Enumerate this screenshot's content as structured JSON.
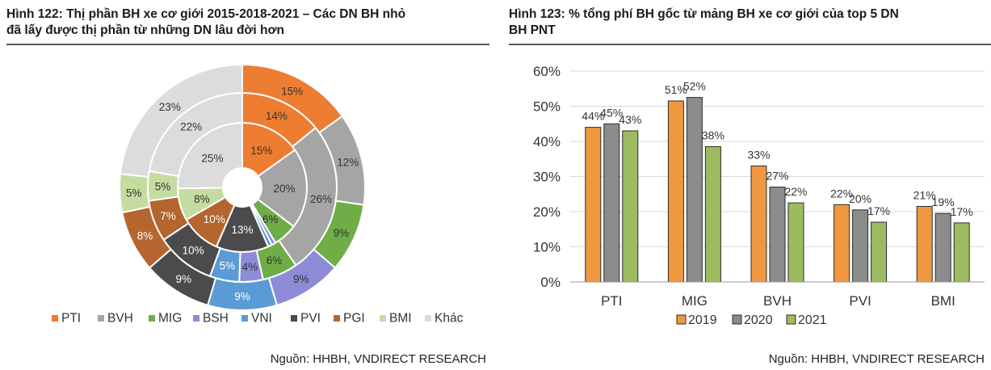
{
  "left": {
    "title_line1": "Hình 122: Thị phần BH xe cơ giới 2015-2018-2021 – Các DN BH nhỏ",
    "title_line2": "đã lấy được thị phần từ những DN lâu đời hơn",
    "source": "Nguồn: HHBH, VNDIRECT RESEARCH"
  },
  "right": {
    "title_line1": "Hình 123: % tổng phí BH gốc từ mảng BH xe cơ giới của top 5 DN",
    "title_line2": "BH PNT",
    "source": "Nguồn: HHBH, VNDIRECT RESEARCH"
  },
  "colors": {
    "PTI": "#ED7D31",
    "BVH": "#A5A5A5",
    "MIG": "#70AD47",
    "BSH": "#8E8CD8",
    "VNI": "#5B9BD5",
    "PVI": "#4B4B4D",
    "PGI": "#B5652E",
    "BMI": "#C5DCA0",
    "Khác": "#DCDCDC",
    "2019": "#F0983F",
    "2020": "#8C8C8C",
    "2021": "#9CBB60"
  },
  "chart_data": [
    {
      "type": "pie",
      "subtype": "donut",
      "legend_position": "bottom",
      "categories": [
        "PTI",
        "BVH",
        "MIG",
        "BSH",
        "VNI",
        "PVI",
        "PGI",
        "BMI",
        "Khác"
      ],
      "rings": [
        {
          "ring": "inner",
          "values": [
            15,
            20,
            6,
            1,
            1,
            13,
            10,
            8,
            25
          ],
          "labels": [
            "15%",
            "20%",
            "6%",
            "",
            "",
            "13%",
            "10%",
            "8%",
            "25%"
          ]
        },
        {
          "ring": "middle",
          "values": [
            14,
            26,
            6,
            4,
            5,
            10,
            7,
            5,
            22
          ],
          "labels": [
            "14%",
            "26%",
            "6%",
            "4%",
            "5%",
            "10%",
            "7%",
            "5%",
            "22%"
          ]
        },
        {
          "ring": "outer",
          "values": [
            15,
            12,
            9,
            9,
            9,
            9,
            8,
            5,
            23
          ],
          "labels": [
            "15%",
            "12%",
            "9%",
            "9%",
            "9%",
            "9%",
            "8%",
            "5%",
            "23%"
          ]
        }
      ]
    },
    {
      "type": "bar",
      "categories": [
        "PTI",
        "MIG",
        "BVH",
        "PVI",
        "BMI"
      ],
      "series": [
        {
          "name": "2019",
          "values": [
            44,
            51.5,
            33,
            22,
            21.5
          ],
          "labels": [
            "44%",
            "51%",
            "33%",
            "22%",
            "21%"
          ]
        },
        {
          "name": "2020",
          "values": [
            45,
            52.5,
            27,
            20.5,
            19.5
          ],
          "labels": [
            "45%",
            "52%",
            "27%",
            "20%",
            "19%"
          ]
        },
        {
          "name": "2021",
          "values": [
            43,
            38.5,
            22.5,
            17,
            16.8
          ],
          "labels": [
            "43%",
            "38%",
            "22%",
            "17%",
            "17%"
          ]
        }
      ],
      "ylim": [
        0,
        60
      ],
      "yticks": [
        "0%",
        "10%",
        "20%",
        "30%",
        "40%",
        "50%",
        "60%"
      ],
      "grid": true,
      "legend_position": "bottom"
    }
  ]
}
